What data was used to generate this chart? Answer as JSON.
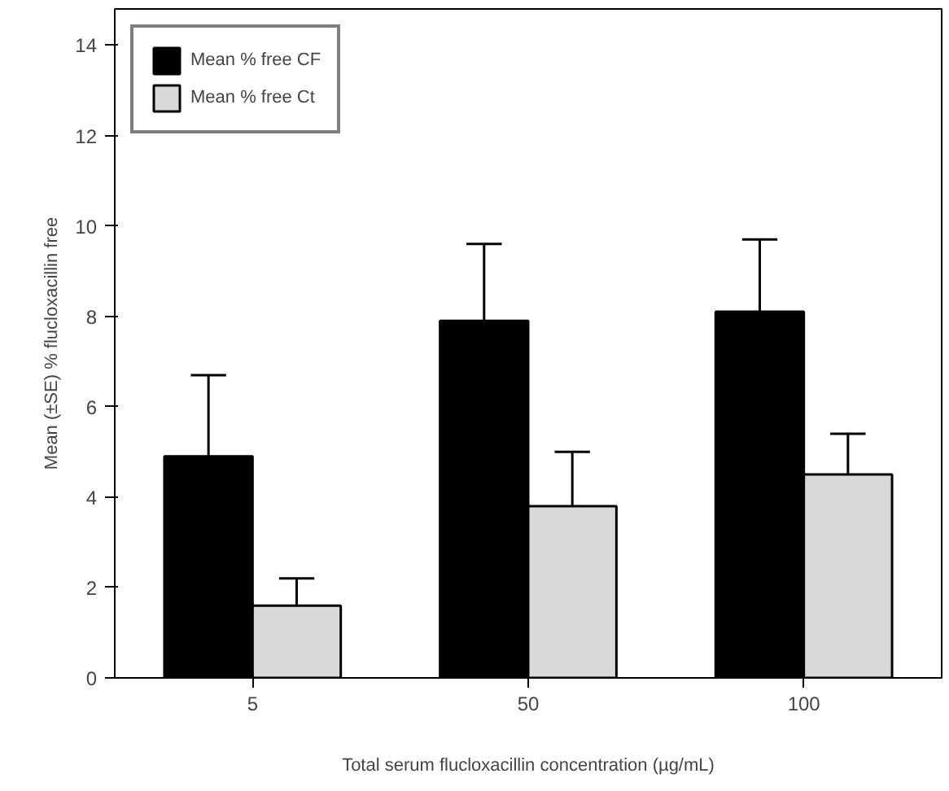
{
  "chart_data": {
    "type": "bar",
    "xlabel": "Total serum flucloxacillin concentration (µg/mL)",
    "ylabel": "Mean (±SE) % flucloxacillin free",
    "categories": [
      "5",
      "50",
      "100"
    ],
    "series": [
      {
        "name": "Mean % free CF",
        "color": "#000000",
        "values": [
          4.9,
          7.9,
          8.1
        ],
        "errors": [
          1.8,
          1.7,
          1.6
        ]
      },
      {
        "name": "Mean % free Ct",
        "color": "#d9d9d9",
        "values": [
          1.6,
          3.8,
          4.5
        ],
        "errors": [
          0.6,
          1.2,
          0.9
        ]
      }
    ],
    "ylim": [
      0,
      14.8
    ],
    "yticks": [
      0,
      2,
      4,
      6,
      8,
      10,
      12,
      14
    ],
    "grid": false,
    "legend": "top left"
  }
}
